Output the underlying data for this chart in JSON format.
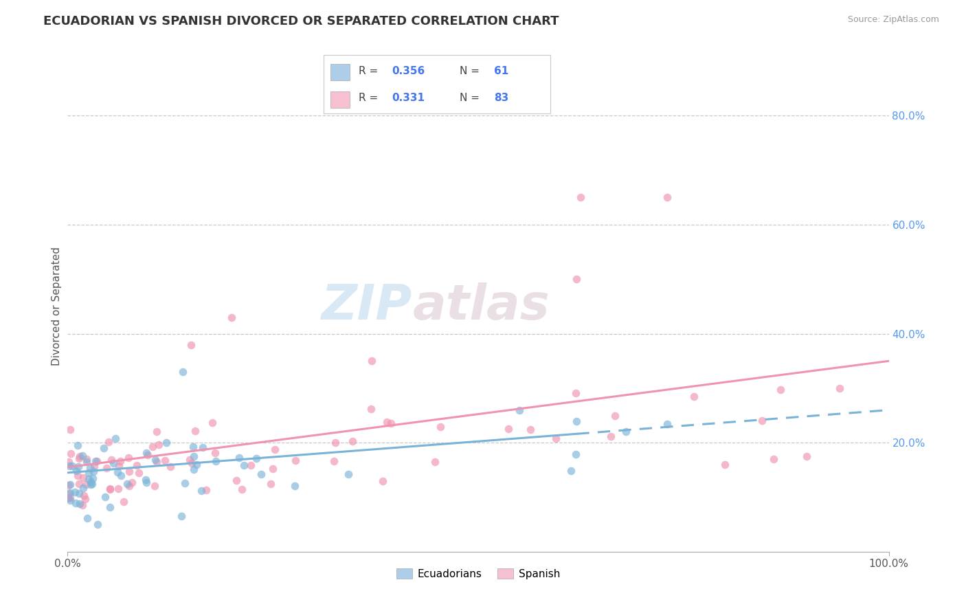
{
  "title": "ECUADORIAN VS SPANISH DIVORCED OR SEPARATED CORRELATION CHART",
  "source": "Source: ZipAtlas.com",
  "ylabel": "Divorced or Separated",
  "legend_label1": "Ecuadorians",
  "legend_label2": "Spanish",
  "r1": 0.356,
  "n1": 61,
  "r2": 0.331,
  "n2": 83,
  "color_blue": "#7ab3d8",
  "color_pink": "#f093b0",
  "color_blue_light": "#aecde8",
  "color_pink_light": "#f7c0d0",
  "background": "#ffffff",
  "grid_color": "#c8c8c8",
  "watermark_zip": "ZIP",
  "watermark_atlas": "atlas",
  "xlim": [
    0,
    100
  ],
  "ylim": [
    0,
    90
  ],
  "ytick_vals": [
    20,
    40,
    60,
    80
  ],
  "ytick_labels": [
    "20.0%",
    "40.0%",
    "60.0%",
    "80.0%"
  ],
  "xtick_vals": [
    0,
    100
  ],
  "xtick_labels": [
    "0.0%",
    "100.0%"
  ],
  "blue_line_solid_end": 62,
  "blue_line_y0": 14.5,
  "blue_line_y100": 26.0,
  "pink_line_y0": 15.5,
  "pink_line_y100": 35.0,
  "title_fontsize": 13,
  "source_fontsize": 9,
  "tick_fontsize": 11,
  "ylabel_fontsize": 11
}
